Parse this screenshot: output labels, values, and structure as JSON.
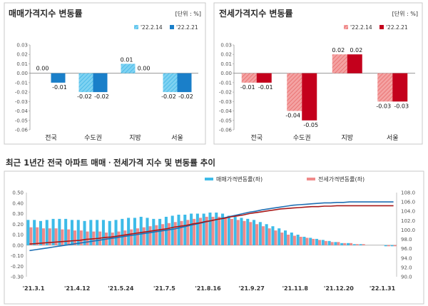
{
  "colors": {
    "sale_prev": "#5bc4ee",
    "sale_curr": "#1a7fc9",
    "jeonse_prev": "#f28a8a",
    "jeonse_curr": "#c4001c",
    "sale_line": "#1f6fb3",
    "jeonse_line": "#a81818",
    "line_bar_sale": "#3dbbe8",
    "line_bar_jeonse": "#f08a8a"
  },
  "panel1": {
    "title": "매매가격지수 변동률",
    "unit": "[단위 : %]",
    "legend": [
      "'22.2.14",
      "'22.2.21"
    ]
  },
  "panel2": {
    "title": "전세가격지수 변동률",
    "unit": "[단위 : %]",
    "legend": [
      "'22.2.14",
      "'22.2.21"
    ]
  },
  "panel3": {
    "title": "최근 1년간 전국 아파트 매매ㆍ전세가격 지수 및 변동률 추이",
    "legend_sale": "매매가격변동률(좌)",
    "legend_jeonse": "전세가격변동률(좌)"
  },
  "chart_data": [
    {
      "type": "bar",
      "title": "매매가격지수 변동률",
      "categories": [
        "전국",
        "수도권",
        "지방",
        "서울"
      ],
      "series": [
        {
          "name": "'22.2.14",
          "values": [
            0.0,
            -0.02,
            0.01,
            -0.02
          ]
        },
        {
          "name": "'22.2.21",
          "values": [
            -0.01,
            -0.02,
            0.0,
            -0.02
          ]
        }
      ],
      "data_labels": [
        [
          "0.00",
          "-0.02",
          "0.01",
          "-0.02"
        ],
        [
          "-0.01",
          "-0.02",
          "0.00",
          "-0.02"
        ]
      ],
      "ylim": [
        -0.06,
        0.03
      ],
      "yticks": [
        "0.03",
        "0.02",
        "0.01",
        "0.00",
        "-0.01",
        "-0.02",
        "-0.03",
        "-0.04",
        "-0.05",
        "-0.06"
      ],
      "grid": false,
      "legend_position": "top-right"
    },
    {
      "type": "bar",
      "title": "전세가격지수 변동률",
      "categories": [
        "전국",
        "수도권",
        "지방",
        "서울"
      ],
      "series": [
        {
          "name": "'22.2.14",
          "values": [
            -0.01,
            -0.04,
            0.02,
            -0.03
          ]
        },
        {
          "name": "'22.2.21",
          "values": [
            -0.01,
            -0.05,
            0.02,
            -0.03
          ]
        }
      ],
      "data_labels": [
        [
          "-0.01",
          "-0.04",
          "0.02",
          "-0.03"
        ],
        [
          "-0.01",
          "-0.05",
          "0.02",
          "-0.03"
        ]
      ],
      "ylim": [
        -0.06,
        0.03
      ],
      "yticks": [
        "0.03",
        "0.02",
        "0.01",
        "0.00",
        "-0.01",
        "-0.02",
        "-0.03",
        "-0.04",
        "-0.05",
        "-0.06"
      ],
      "grid": false,
      "legend_position": "top-right"
    },
    {
      "type": "bar",
      "title": "최근 1년간 전국 아파트 매매ㆍ전세가격 지수 및 변동률 추이",
      "x_tick_labels": [
        "'21.3.1",
        "'21.4.12",
        "'21.5.24",
        "'21.7.5",
        "'21.8.16",
        "'21.9.27",
        "'21.11.8",
        "'21.12.20",
        "'22.1.31"
      ],
      "series": [
        {
          "name": "매매가격변동률(좌)",
          "axis": "left",
          "values": [
            0.24,
            0.24,
            0.23,
            0.24,
            0.25,
            0.25,
            0.25,
            0.24,
            0.24,
            0.23,
            0.24,
            0.24,
            0.24,
            0.23,
            0.24,
            0.25,
            0.26,
            0.26,
            0.27,
            0.26,
            0.25,
            0.25,
            0.27,
            0.28,
            0.29,
            0.29,
            0.3,
            0.3,
            0.3,
            0.31,
            0.31,
            0.3,
            0.28,
            0.27,
            0.26,
            0.25,
            0.24,
            0.22,
            0.2,
            0.18,
            0.16,
            0.14,
            0.12,
            0.1,
            0.08,
            0.07,
            0.06,
            0.05,
            0.04,
            0.03,
            0.02,
            0.02,
            0.01,
            0.01,
            0.0,
            0.0,
            0.0,
            -0.01,
            -0.01
          ]
        },
        {
          "name": "전세가격변동률(좌)",
          "axis": "left",
          "values": [
            0.17,
            0.17,
            0.16,
            0.16,
            0.16,
            0.15,
            0.15,
            0.14,
            0.14,
            0.13,
            0.13,
            0.13,
            0.12,
            0.12,
            0.13,
            0.14,
            0.15,
            0.16,
            0.17,
            0.18,
            0.19,
            0.2,
            0.21,
            0.22,
            0.23,
            0.24,
            0.25,
            0.26,
            0.27,
            0.27,
            0.27,
            0.26,
            0.25,
            0.24,
            0.23,
            0.22,
            0.2,
            0.18,
            0.16,
            0.14,
            0.12,
            0.1,
            0.09,
            0.08,
            0.07,
            0.06,
            0.05,
            0.04,
            0.03,
            0.03,
            0.02,
            0.02,
            0.01,
            0.01,
            0.0,
            0.0,
            0.0,
            -0.01,
            -0.01
          ]
        },
        {
          "name": "sale_index",
          "axis": "right",
          "values": [
            95.6,
            95.8,
            96.0,
            96.2,
            96.4,
            96.6,
            96.8,
            97.0,
            97.2,
            97.4,
            97.6,
            97.8,
            98.0,
            98.2,
            98.4,
            98.6,
            98.8,
            99.0,
            99.2,
            99.4,
            99.6,
            99.8,
            100.0,
            100.2,
            100.5,
            100.8,
            101.1,
            101.4,
            101.7,
            102.0,
            102.3,
            102.6,
            102.9,
            103.2,
            103.5,
            103.8,
            104.0,
            104.3,
            104.5,
            104.7,
            104.9,
            105.1,
            105.3,
            105.4,
            105.5,
            105.6,
            105.7,
            105.8,
            105.8,
            105.9,
            105.9,
            106.0,
            106.0,
            106.0,
            106.0,
            106.0,
            106.0,
            106.0,
            106.0
          ]
        },
        {
          "name": "jeonse_index",
          "axis": "right",
          "values": [
            97.0,
            97.1,
            97.2,
            97.3,
            97.4,
            97.5,
            97.6,
            97.7,
            97.8,
            98.0,
            98.1,
            98.2,
            98.4,
            98.5,
            98.7,
            98.9,
            99.1,
            99.3,
            99.5,
            99.7,
            99.9,
            100.1,
            100.3,
            100.6,
            100.8,
            101.0,
            101.3,
            101.5,
            101.8,
            102.0,
            102.3,
            102.5,
            102.8,
            103.0,
            103.2,
            103.5,
            103.7,
            103.9,
            104.1,
            104.3,
            104.5,
            104.6,
            104.7,
            104.8,
            104.9,
            105.0,
            105.0,
            105.1,
            105.1,
            105.2,
            105.2,
            105.2,
            105.2,
            105.2,
            105.2,
            105.2,
            105.2,
            105.2,
            105.2
          ]
        }
      ],
      "ylim_left": [
        -0.3,
        0.5
      ],
      "yticks_left": [
        "0.50",
        "0.40",
        "0.30",
        "0.20",
        "0.10",
        "0.00",
        "-0.10",
        "-0.20",
        "-0.30"
      ],
      "ylim_right": [
        90.0,
        108.0
      ],
      "yticks_right": [
        "108.0",
        "106.0",
        "104.0",
        "102.0",
        "100.0",
        "98.0",
        "96.0",
        "94.0",
        "92.0",
        "90.0"
      ],
      "grid": false,
      "legend_position": "top-center"
    }
  ]
}
